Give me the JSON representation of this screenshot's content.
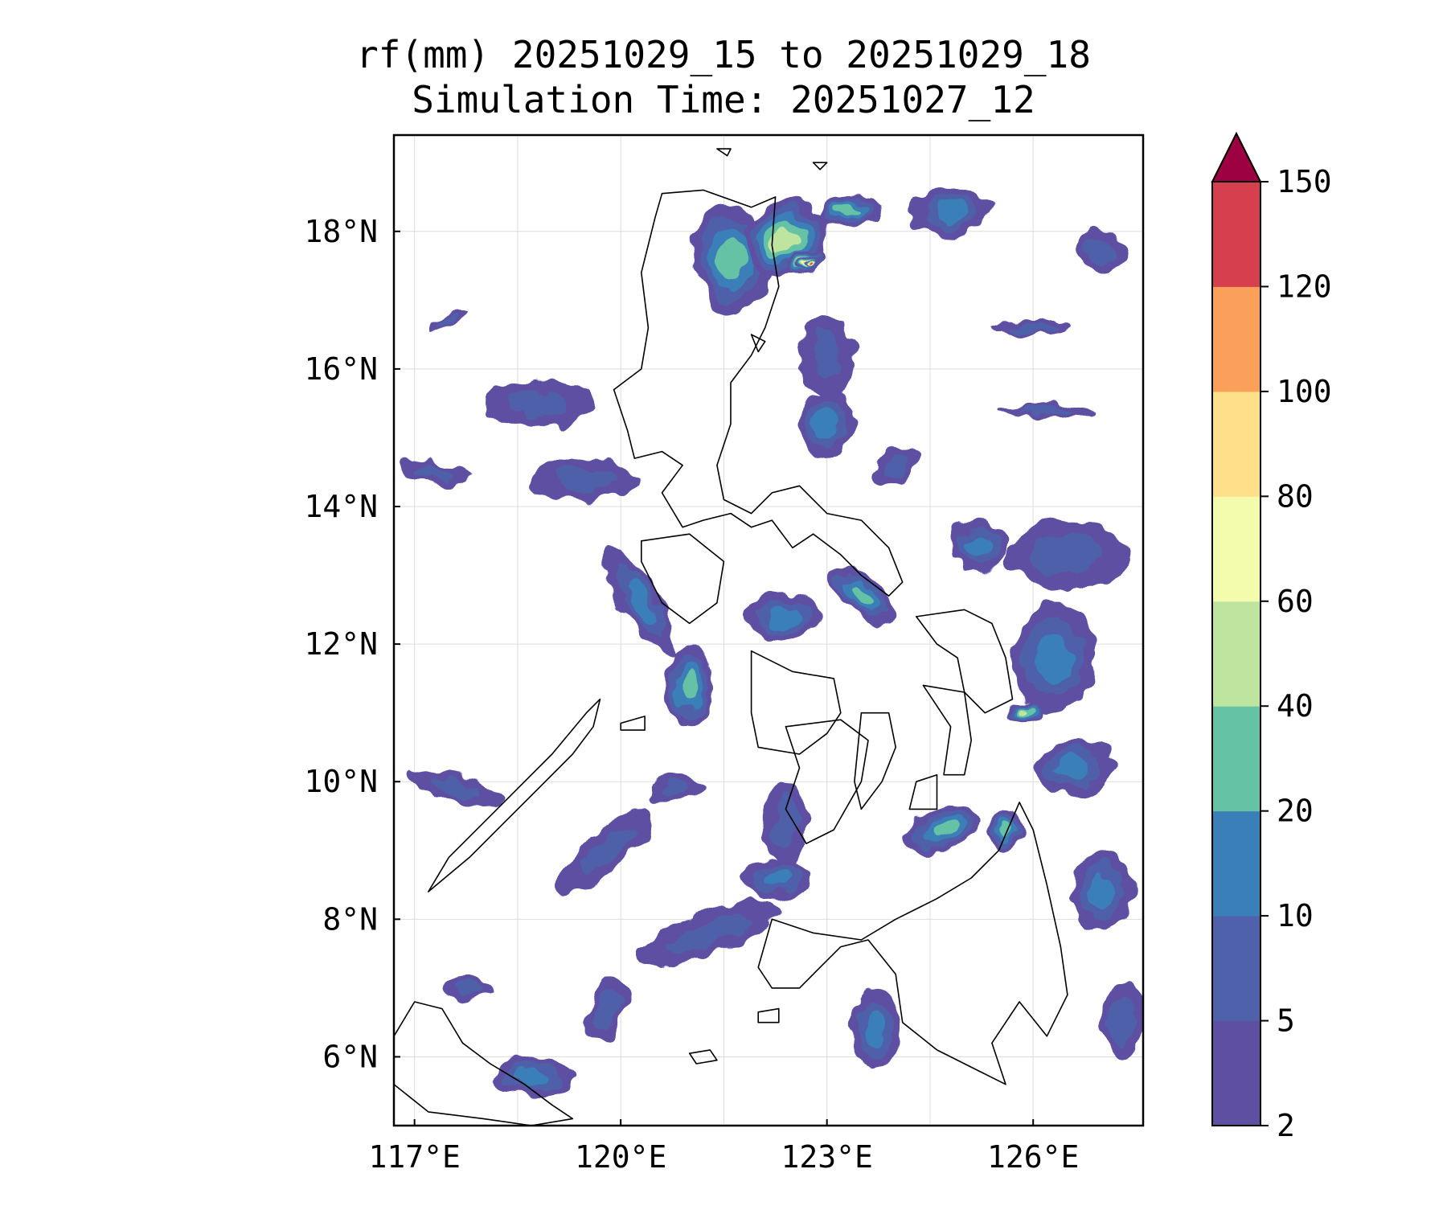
{
  "title": {
    "line1": "rf(mm) 20251029_15 to 20251029_18",
    "line2": "Simulation Time: 20251027_12"
  },
  "map": {
    "lon_range": [
      116.7,
      127.6
    ],
    "lat_range": [
      5.0,
      19.4
    ],
    "lon_ticks": [
      {
        "value": 117,
        "label": "117°E"
      },
      {
        "value": 120,
        "label": "120°E"
      },
      {
        "value": 123,
        "label": "123°E"
      },
      {
        "value": 126,
        "label": "126°E"
      }
    ],
    "lat_ticks": [
      {
        "value": 6,
        "label": "6°N"
      },
      {
        "value": 8,
        "label": "8°N"
      },
      {
        "value": 10,
        "label": "10°N"
      },
      {
        "value": 12,
        "label": "12°N"
      },
      {
        "value": 14,
        "label": "14°N"
      },
      {
        "value": 16,
        "label": "16°N"
      },
      {
        "value": 18,
        "label": "18°N"
      }
    ],
    "grid_lons": [
      117,
      118.5,
      120,
      121.5,
      123,
      124.5,
      126
    ],
    "grid_lats": [
      6,
      8,
      10,
      12,
      14,
      16,
      18
    ],
    "gridlines": true,
    "coastline_color": "#000000",
    "grid_color": "#dddddd"
  },
  "colorbar": {
    "levels": [
      "2",
      "5",
      "10",
      "20",
      "40",
      "60",
      "80",
      "100",
      "120",
      "150"
    ],
    "colors": [
      "#5e4fa2",
      "#4f61aa",
      "#3a7fb8",
      "#66c2a5",
      "#bde5a0",
      "#f3fbac",
      "#fee08b",
      "#fba05b",
      "#d6404e"
    ],
    "extend_color": "#9e0142",
    "extend": "max"
  },
  "rain_fields": [
    {
      "lon": 121.6,
      "lat": 17.6,
      "rx": 0.55,
      "ry": 0.8,
      "rot": -10,
      "level": 3
    },
    {
      "lon": 122.4,
      "lat": 17.9,
      "rx": 0.6,
      "ry": 0.55,
      "rot": -20,
      "level": 4
    },
    {
      "lon": 122.7,
      "lat": 17.55,
      "rx": 0.28,
      "ry": 0.16,
      "rot": -20,
      "level": 5
    },
    {
      "lon": 122.75,
      "lat": 17.55,
      "rx": 0.16,
      "ry": 0.09,
      "rot": -20,
      "level": 6
    },
    {
      "lon": 122.8,
      "lat": 17.55,
      "rx": 0.08,
      "ry": 0.05,
      "rot": 0,
      "level": 8
    },
    {
      "lon": 123.3,
      "lat": 18.3,
      "rx": 0.5,
      "ry": 0.22,
      "rot": -10,
      "level": 3
    },
    {
      "lon": 124.8,
      "lat": 18.3,
      "rx": 0.6,
      "ry": 0.35,
      "rot": -10,
      "level": 2
    },
    {
      "lon": 123.0,
      "lat": 16.2,
      "rx": 0.4,
      "ry": 0.6,
      "rot": 0,
      "level": 1
    },
    {
      "lon": 123.0,
      "lat": 15.2,
      "rx": 0.4,
      "ry": 0.5,
      "rot": 0,
      "level": 2
    },
    {
      "lon": 119.5,
      "lat": 14.4,
      "rx": 0.8,
      "ry": 0.3,
      "rot": 0,
      "level": 1
    },
    {
      "lon": 120.3,
      "lat": 12.6,
      "rx": 0.3,
      "ry": 0.9,
      "rot": -30,
      "level": 2
    },
    {
      "lon": 121.0,
      "lat": 11.4,
      "rx": 0.35,
      "ry": 0.6,
      "rot": 0,
      "level": 3
    },
    {
      "lon": 122.4,
      "lat": 12.4,
      "rx": 0.55,
      "ry": 0.35,
      "rot": 0,
      "level": 2
    },
    {
      "lon": 123.5,
      "lat": 12.7,
      "rx": 0.6,
      "ry": 0.25,
      "rot": 40,
      "level": 3
    },
    {
      "lon": 126.3,
      "lat": 11.8,
      "rx": 0.6,
      "ry": 0.8,
      "rot": 0,
      "level": 2
    },
    {
      "lon": 125.9,
      "lat": 11.0,
      "rx": 0.25,
      "ry": 0.2,
      "rot": 0,
      "level": 4
    },
    {
      "lon": 124.7,
      "lat": 9.3,
      "rx": 0.6,
      "ry": 0.3,
      "rot": -20,
      "level": 3
    },
    {
      "lon": 125.6,
      "lat": 9.3,
      "rx": 0.25,
      "ry": 0.3,
      "rot": 0,
      "level": 3
    },
    {
      "lon": 126.6,
      "lat": 10.2,
      "rx": 0.55,
      "ry": 0.4,
      "rot": 0,
      "level": 2
    },
    {
      "lon": 119.8,
      "lat": 9.0,
      "rx": 0.9,
      "ry": 0.25,
      "rot": -40,
      "level": 1
    },
    {
      "lon": 121.3,
      "lat": 7.8,
      "rx": 1.1,
      "ry": 0.3,
      "rot": -20,
      "level": 1
    },
    {
      "lon": 122.3,
      "lat": 8.6,
      "rx": 0.5,
      "ry": 0.3,
      "rot": 0,
      "level": 2
    },
    {
      "lon": 122.4,
      "lat": 9.4,
      "rx": 0.3,
      "ry": 0.6,
      "rot": 0,
      "level": 1
    },
    {
      "lon": 118.7,
      "lat": 5.7,
      "rx": 0.6,
      "ry": 0.3,
      "rot": 0,
      "level": 2
    },
    {
      "lon": 123.7,
      "lat": 6.4,
      "rx": 0.35,
      "ry": 0.6,
      "rot": 0,
      "level": 2
    },
    {
      "lon": 127.0,
      "lat": 8.4,
      "rx": 0.45,
      "ry": 0.6,
      "rot": 0,
      "level": 2
    },
    {
      "lon": 127.3,
      "lat": 6.5,
      "rx": 0.3,
      "ry": 0.6,
      "rot": 0,
      "level": 1
    },
    {
      "lon": 126.5,
      "lat": 13.3,
      "rx": 0.9,
      "ry": 0.5,
      "rot": 0,
      "level": 1
    },
    {
      "lon": 125.2,
      "lat": 13.4,
      "rx": 0.4,
      "ry": 0.4,
      "rot": 0,
      "level": 2
    },
    {
      "lon": 118.8,
      "lat": 15.5,
      "rx": 0.8,
      "ry": 0.35,
      "rot": 0,
      "level": 1
    },
    {
      "lon": 117.3,
      "lat": 14.5,
      "rx": 0.5,
      "ry": 0.15,
      "rot": 10,
      "level": 1
    },
    {
      "lon": 120.8,
      "lat": 9.9,
      "rx": 0.4,
      "ry": 0.2,
      "rot": 0,
      "level": 1
    },
    {
      "lon": 117.6,
      "lat": 9.9,
      "rx": 0.7,
      "ry": 0.2,
      "rot": 15,
      "level": 1
    },
    {
      "lon": 117.8,
      "lat": 7.0,
      "rx": 0.35,
      "ry": 0.15,
      "rot": 0,
      "level": 1
    },
    {
      "lon": 119.8,
      "lat": 6.7,
      "rx": 0.25,
      "ry": 0.5,
      "rot": 20,
      "level": 1
    },
    {
      "lon": 124.0,
      "lat": 14.6,
      "rx": 0.4,
      "ry": 0.25,
      "rot": -30,
      "level": 1
    },
    {
      "lon": 126.0,
      "lat": 16.6,
      "rx": 0.6,
      "ry": 0.1,
      "rot": 0,
      "level": 1
    },
    {
      "lon": 126.2,
      "lat": 15.4,
      "rx": 0.7,
      "ry": 0.1,
      "rot": 0,
      "level": 1
    },
    {
      "lon": 127.0,
      "lat": 17.7,
      "rx": 0.4,
      "ry": 0.3,
      "rot": 0,
      "level": 1
    },
    {
      "lon": 117.5,
      "lat": 16.7,
      "rx": 0.3,
      "ry": 0.08,
      "rot": -30,
      "level": 1
    }
  ],
  "coastlines": [
    [
      [
        120.6,
        18.55
      ],
      [
        121.2,
        18.6
      ],
      [
        121.9,
        18.35
      ],
      [
        122.25,
        18.5
      ],
      [
        122.2,
        17.8
      ],
      [
        122.3,
        17.2
      ],
      [
        122.1,
        16.6
      ],
      [
        121.9,
        16.2
      ],
      [
        121.6,
        15.8
      ],
      [
        121.6,
        15.2
      ],
      [
        121.4,
        14.6
      ],
      [
        121.5,
        14.1
      ],
      [
        121.9,
        13.9
      ],
      [
        122.2,
        14.2
      ],
      [
        122.6,
        14.3
      ],
      [
        123.0,
        13.9
      ],
      [
        123.5,
        13.8
      ],
      [
        123.9,
        13.4
      ],
      [
        124.1,
        12.9
      ],
      [
        123.9,
        12.7
      ],
      [
        123.5,
        13.0
      ],
      [
        123.2,
        13.3
      ],
      [
        122.8,
        13.6
      ],
      [
        122.5,
        13.4
      ],
      [
        122.2,
        13.8
      ],
      [
        121.9,
        13.7
      ],
      [
        121.6,
        13.9
      ],
      [
        121.2,
        13.8
      ],
      [
        120.9,
        13.7
      ],
      [
        120.6,
        14.2
      ],
      [
        120.9,
        14.6
      ],
      [
        120.6,
        14.8
      ],
      [
        120.2,
        14.7
      ],
      [
        120.1,
        15.1
      ],
      [
        119.9,
        15.7
      ],
      [
        120.3,
        16.0
      ],
      [
        120.4,
        16.6
      ],
      [
        120.3,
        17.4
      ],
      [
        120.5,
        18.2
      ],
      [
        120.6,
        18.55
      ]
    ],
    [
      [
        120.3,
        13.5
      ],
      [
        121.0,
        13.6
      ],
      [
        121.5,
        13.2
      ],
      [
        121.4,
        12.6
      ],
      [
        121.0,
        12.3
      ],
      [
        120.6,
        12.6
      ],
      [
        120.3,
        13.2
      ],
      [
        120.3,
        13.5
      ]
    ],
    [
      [
        121.9,
        11.9
      ],
      [
        122.5,
        11.6
      ],
      [
        123.1,
        11.5
      ],
      [
        123.2,
        11.0
      ],
      [
        123.0,
        10.7
      ],
      [
        122.6,
        10.4
      ],
      [
        122.0,
        10.5
      ],
      [
        121.9,
        11.0
      ],
      [
        121.9,
        11.9
      ]
    ],
    [
      [
        122.4,
        10.8
      ],
      [
        123.2,
        10.9
      ],
      [
        123.6,
        10.6
      ],
      [
        123.5,
        10.0
      ],
      [
        123.1,
        9.3
      ],
      [
        122.7,
        9.1
      ],
      [
        122.4,
        9.6
      ],
      [
        122.6,
        10.2
      ],
      [
        122.4,
        10.8
      ]
    ],
    [
      [
        123.5,
        11.0
      ],
      [
        123.9,
        11.0
      ],
      [
        124.0,
        10.5
      ],
      [
        123.8,
        10.0
      ],
      [
        123.5,
        9.6
      ],
      [
        123.4,
        10.0
      ],
      [
        123.5,
        11.0
      ]
    ],
    [
      [
        124.3,
        10.0
      ],
      [
        124.6,
        10.1
      ],
      [
        124.6,
        9.6
      ],
      [
        124.2,
        9.6
      ],
      [
        124.3,
        10.0
      ]
    ],
    [
      [
        124.3,
        12.4
      ],
      [
        125.0,
        12.5
      ],
      [
        125.4,
        12.3
      ],
      [
        125.6,
        11.8
      ],
      [
        125.7,
        11.2
      ],
      [
        125.3,
        11.0
      ],
      [
        125.0,
        11.3
      ],
      [
        124.9,
        11.8
      ],
      [
        124.6,
        12.0
      ],
      [
        124.3,
        12.4
      ]
    ],
    [
      [
        124.4,
        11.4
      ],
      [
        125.0,
        11.3
      ],
      [
        125.1,
        10.6
      ],
      [
        125.0,
        10.1
      ],
      [
        124.7,
        10.1
      ],
      [
        124.8,
        10.8
      ],
      [
        124.4,
        11.4
      ]
    ],
    [
      [
        122.2,
        8.0
      ],
      [
        122.8,
        7.8
      ],
      [
        123.5,
        7.7
      ],
      [
        124.0,
        8.0
      ],
      [
        124.6,
        8.3
      ],
      [
        125.1,
        8.6
      ],
      [
        125.5,
        9.0
      ],
      [
        125.8,
        9.7
      ],
      [
        126.0,
        9.3
      ],
      [
        126.2,
        8.5
      ],
      [
        126.4,
        7.6
      ],
      [
        126.5,
        6.9
      ],
      [
        126.2,
        6.3
      ],
      [
        125.8,
        6.8
      ],
      [
        125.4,
        6.2
      ],
      [
        125.6,
        5.6
      ],
      [
        125.2,
        5.8
      ],
      [
        124.6,
        6.1
      ],
      [
        124.1,
        6.5
      ],
      [
        124.0,
        7.2
      ],
      [
        123.6,
        7.7
      ],
      [
        123.2,
        7.6
      ],
      [
        122.9,
        7.3
      ],
      [
        122.6,
        7.0
      ],
      [
        122.2,
        7.0
      ],
      [
        122.0,
        7.3
      ],
      [
        122.2,
        8.0
      ]
    ],
    [
      [
        117.2,
        8.4
      ],
      [
        117.8,
        8.9
      ],
      [
        118.3,
        9.4
      ],
      [
        118.8,
        9.9
      ],
      [
        119.3,
        10.4
      ],
      [
        119.6,
        10.8
      ],
      [
        119.7,
        11.2
      ],
      [
        119.5,
        11.0
      ],
      [
        119.0,
        10.4
      ],
      [
        118.5,
        9.9
      ],
      [
        118.0,
        9.4
      ],
      [
        117.5,
        8.9
      ],
      [
        117.2,
        8.4
      ]
    ],
    [
      [
        116.7,
        6.3
      ],
      [
        117.0,
        6.8
      ],
      [
        117.4,
        6.7
      ],
      [
        117.7,
        6.2
      ],
      [
        118.1,
        5.9
      ],
      [
        118.6,
        5.6
      ],
      [
        119.0,
        5.3
      ],
      [
        119.3,
        5.1
      ],
      [
        118.7,
        5.0
      ],
      [
        118.0,
        5.1
      ],
      [
        117.2,
        5.2
      ],
      [
        116.7,
        5.6
      ],
      [
        116.7,
        6.3
      ]
    ],
    [
      [
        121.0,
        6.05
      ],
      [
        121.3,
        6.1
      ],
      [
        121.4,
        5.95
      ],
      [
        121.1,
        5.9
      ],
      [
        121.0,
        6.05
      ]
    ],
    [
      [
        122.0,
        6.65
      ],
      [
        122.3,
        6.7
      ],
      [
        122.3,
        6.5
      ],
      [
        122.0,
        6.5
      ],
      [
        122.0,
        6.65
      ]
    ],
    [
      [
        120.0,
        10.85
      ],
      [
        120.35,
        10.95
      ],
      [
        120.35,
        10.75
      ],
      [
        120.0,
        10.75
      ],
      [
        120.0,
        10.85
      ]
    ],
    [
      [
        121.9,
        16.5
      ],
      [
        122.1,
        16.4
      ],
      [
        122.0,
        16.25
      ],
      [
        121.9,
        16.5
      ]
    ],
    [
      [
        121.4,
        19.2
      ],
      [
        121.6,
        19.2
      ],
      [
        121.55,
        19.1
      ],
      [
        121.4,
        19.2
      ]
    ],
    [
      [
        122.8,
        19.0
      ],
      [
        123.0,
        19.0
      ],
      [
        122.9,
        18.9
      ],
      [
        122.8,
        19.0
      ]
    ]
  ]
}
